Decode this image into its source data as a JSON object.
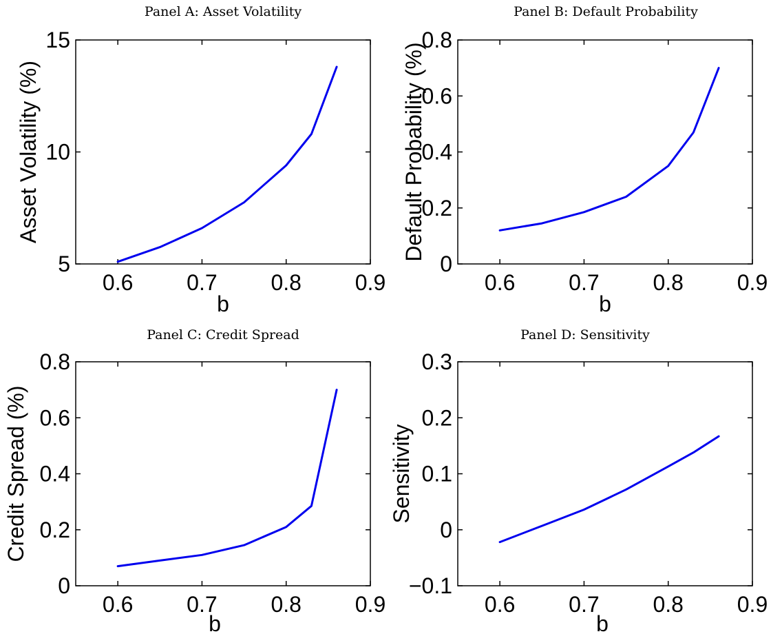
{
  "figure": {
    "line_color": "#0000ee"
  },
  "chart_data": [
    {
      "type": "line",
      "title": "Panel A: Asset Volatility",
      "xlabel": "b",
      "ylabel": "Asset Volatility (%)",
      "xlim": [
        0.55,
        0.9
      ],
      "ylim": [
        5,
        15
      ],
      "xticks": [
        0.6,
        0.7,
        0.8,
        0.9
      ],
      "xtick_labels": [
        "0.6",
        "0.7",
        "0.8",
        "0.9"
      ],
      "yticks": [
        5,
        10,
        15
      ],
      "ytick_labels": [
        "5",
        "10",
        "15"
      ],
      "grid": false,
      "x": [
        0.6,
        0.65,
        0.7,
        0.75,
        0.8,
        0.83,
        0.86
      ],
      "series": [
        {
          "values": [
            5.1,
            5.75,
            6.6,
            7.75,
            9.4,
            10.8,
            13.8
          ]
        }
      ]
    },
    {
      "type": "line",
      "title": "Panel B: Default Probability",
      "xlabel": "b",
      "ylabel": "Default Probability (%)",
      "xlim": [
        0.55,
        0.9
      ],
      "ylim": [
        0,
        0.8
      ],
      "xticks": [
        0.6,
        0.7,
        0.8,
        0.9
      ],
      "xtick_labels": [
        "0.6",
        "0.7",
        "0.8",
        "0.9"
      ],
      "yticks": [
        0,
        0.2,
        0.4,
        0.6,
        0.8
      ],
      "ytick_labels": [
        "0",
        "0.2",
        "0.4",
        "0.6",
        "0.8"
      ],
      "grid": false,
      "x": [
        0.6,
        0.65,
        0.7,
        0.75,
        0.8,
        0.83,
        0.86
      ],
      "series": [
        {
          "values": [
            0.12,
            0.145,
            0.185,
            0.24,
            0.35,
            0.47,
            0.7
          ]
        }
      ]
    },
    {
      "type": "line",
      "title": "Panel C: Credit Spread",
      "xlabel": "b",
      "ylabel": "Credit Spread (%)",
      "xlim": [
        0.55,
        0.9
      ],
      "ylim": [
        0,
        0.8
      ],
      "xticks": [
        0.6,
        0.7,
        0.8,
        0.9
      ],
      "xtick_labels": [
        "0.6",
        "0.7",
        "0.8",
        "0.9"
      ],
      "yticks": [
        0,
        0.2,
        0.4,
        0.6,
        0.8
      ],
      "ytick_labels": [
        "0",
        "0.2",
        "0.4",
        "0.6",
        "0.8"
      ],
      "grid": false,
      "x": [
        0.6,
        0.65,
        0.7,
        0.75,
        0.8,
        0.83,
        0.86
      ],
      "series": [
        {
          "values": [
            0.07,
            0.09,
            0.11,
            0.145,
            0.21,
            0.285,
            0.7
          ]
        }
      ]
    },
    {
      "type": "line",
      "title": "Panel D: Sensitivity",
      "xlabel": "b",
      "ylabel": "Sensitivity",
      "xlim": [
        0.55,
        0.9
      ],
      "ylim": [
        -0.1,
        0.3
      ],
      "xticks": [
        0.6,
        0.7,
        0.8,
        0.9
      ],
      "xtick_labels": [
        "0.6",
        "0.7",
        "0.8",
        "0.9"
      ],
      "yticks": [
        -0.1,
        0,
        0.1,
        0.2,
        0.3
      ],
      "ytick_labels": [
        "−0.1",
        "0",
        "0.1",
        "0.2",
        "0.3"
      ],
      "grid": false,
      "x": [
        0.6,
        0.65,
        0.7,
        0.75,
        0.8,
        0.83,
        0.86
      ],
      "series": [
        {
          "values": [
            -0.022,
            0.007,
            0.036,
            0.072,
            0.113,
            0.138,
            0.167
          ]
        }
      ]
    }
  ]
}
